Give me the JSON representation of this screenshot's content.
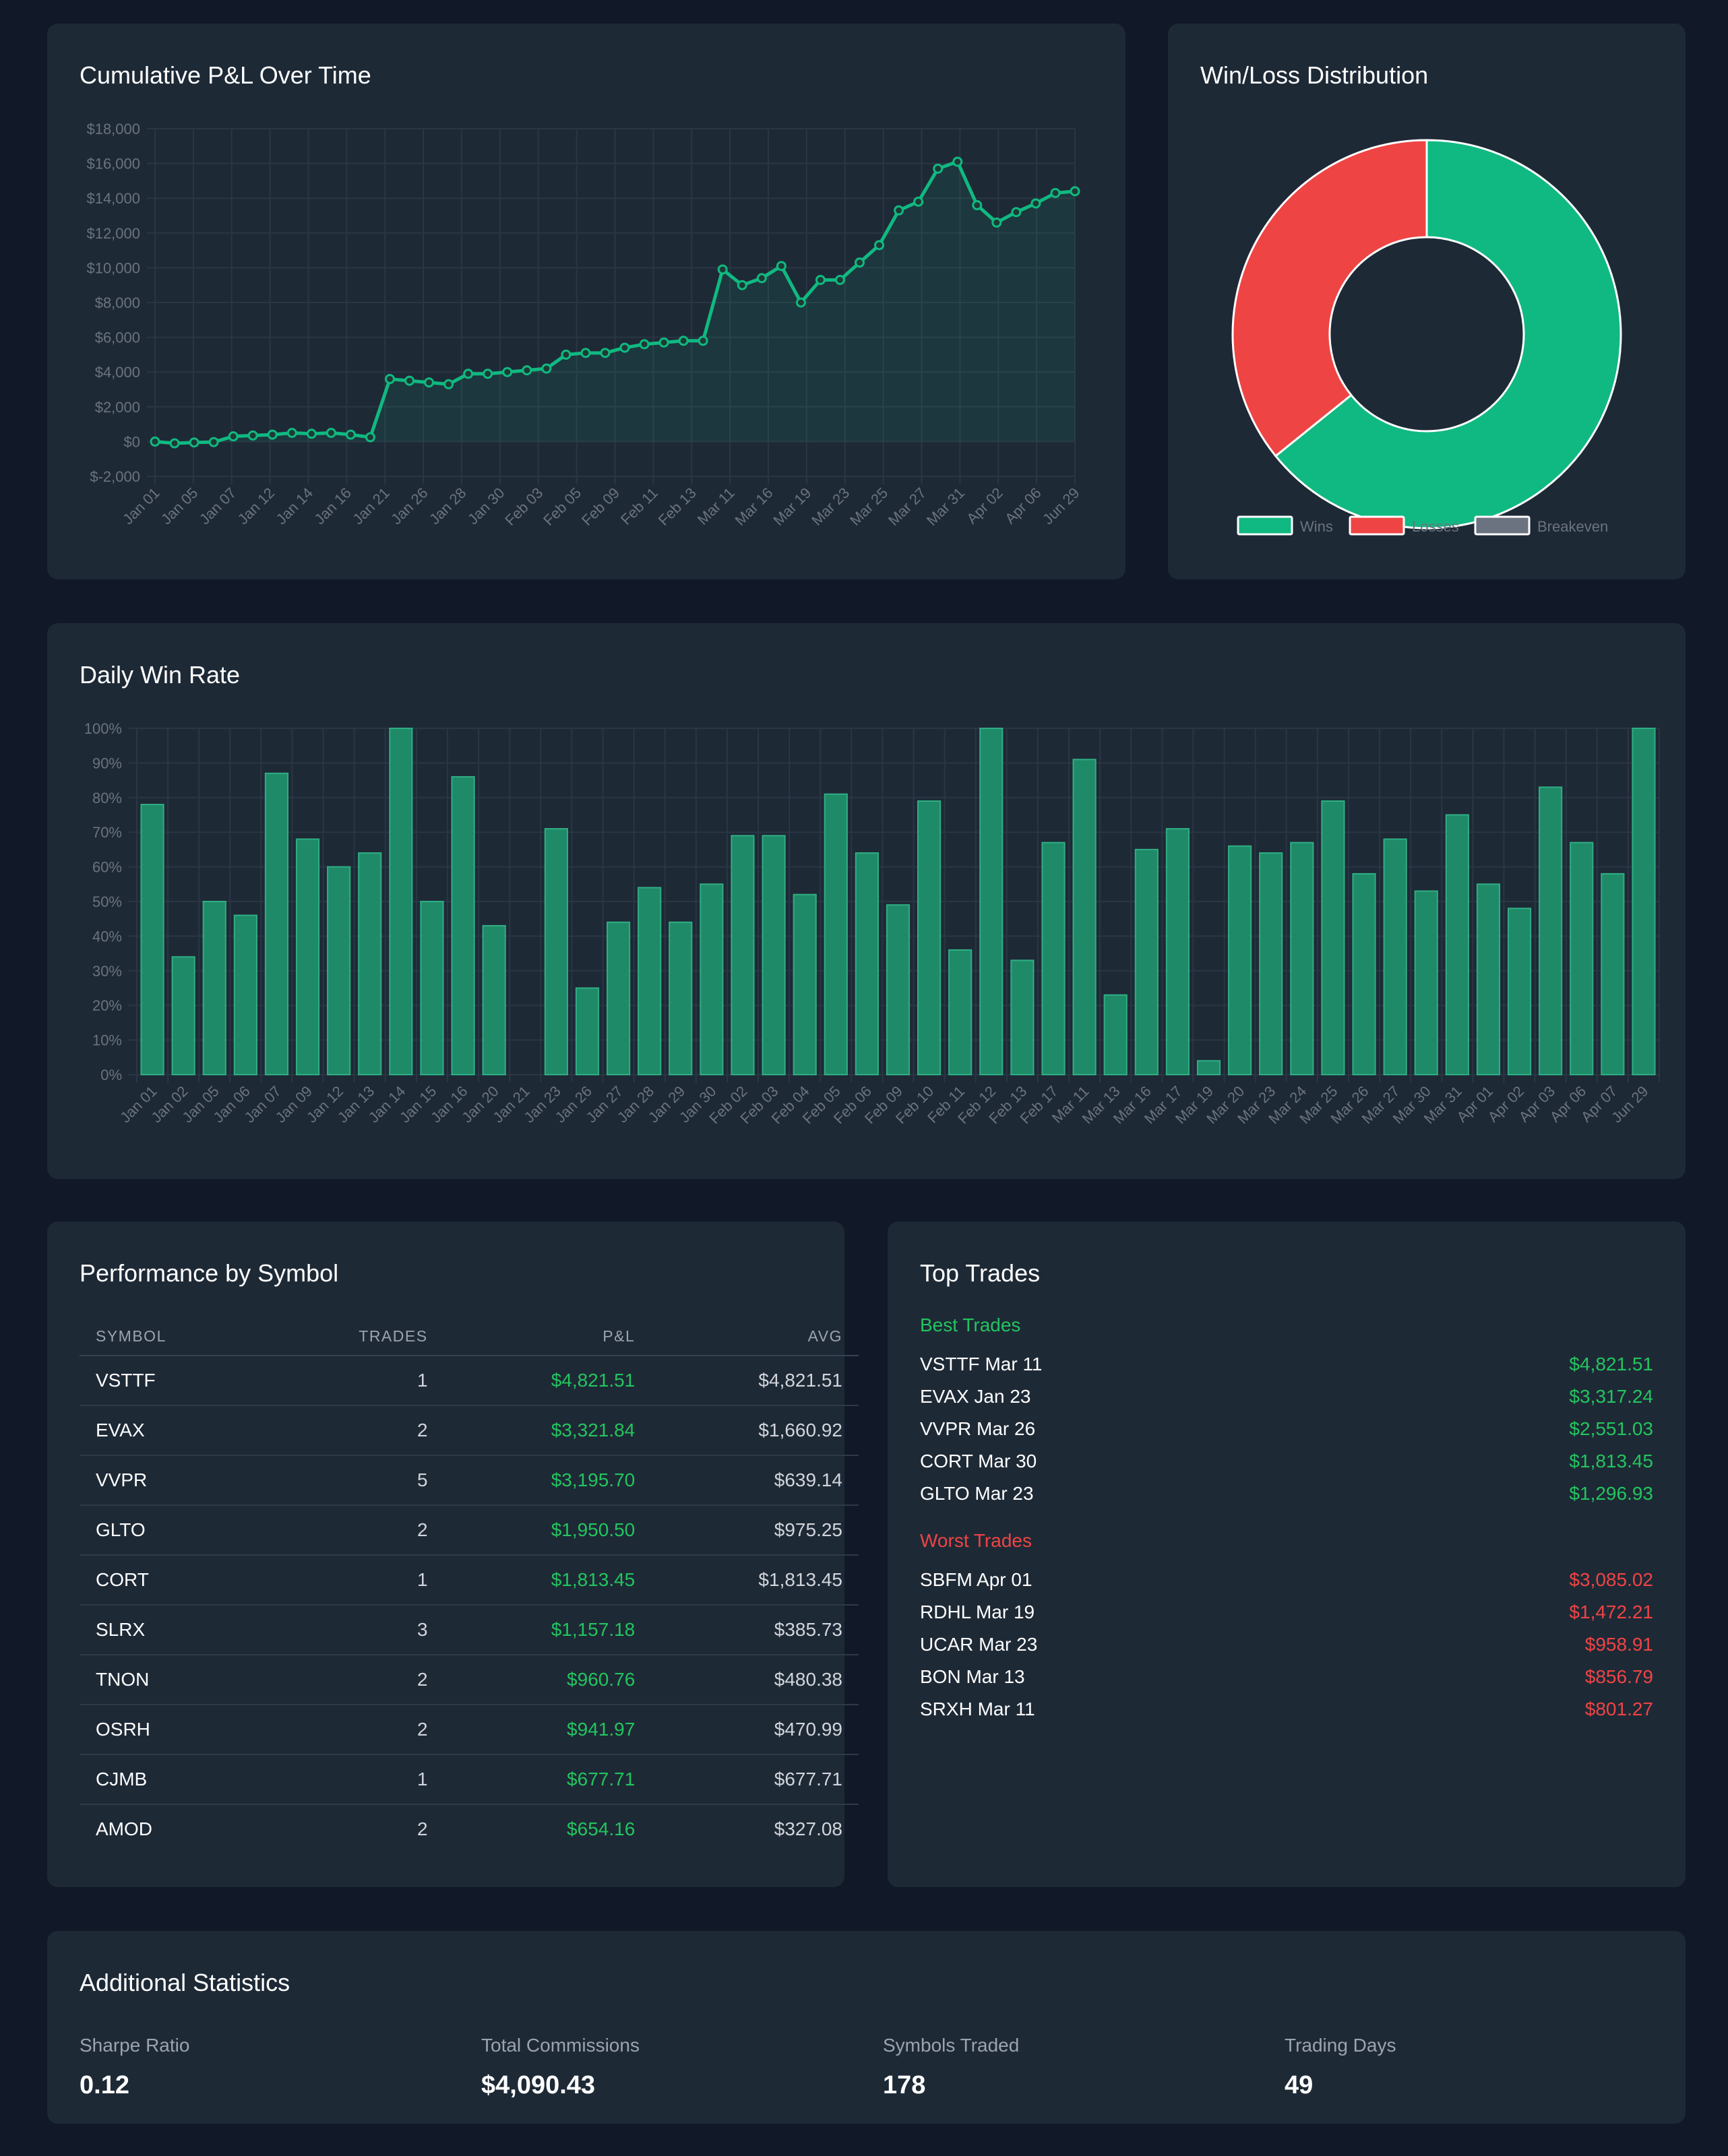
{
  "pnl_chart": {
    "title": "Cumulative P&L Over Time",
    "chart_data": {
      "type": "line",
      "title": "Cumulative P&L Over Time",
      "ylim": [
        -2000,
        18000
      ],
      "y_ticks": [
        "$18,000",
        "$16,000",
        "$14,000",
        "$12,000",
        "$10,000",
        "$8,000",
        "$6,000",
        "$4,000",
        "$2,000",
        "$0",
        "$-2,000"
      ],
      "x_tick_labels": [
        "Jan 01",
        "Jan 05",
        "Jan 07",
        "Jan 12",
        "Jan 14",
        "Jan 16",
        "Jan 21",
        "Jan 26",
        "Jan 28",
        "Jan 30",
        "Feb 03",
        "Feb 05",
        "Feb 09",
        "Feb 11",
        "Feb 13",
        "Mar 11",
        "Mar 16",
        "Mar 19",
        "Mar 23",
        "Mar 25",
        "Mar 27",
        "Mar 31",
        "Apr 02",
        "Apr 06",
        "Jun 29"
      ],
      "values": [
        0,
        -100,
        -50,
        -30,
        300,
        350,
        400,
        500,
        450,
        500,
        400,
        250,
        3600,
        3500,
        3400,
        3300,
        3900,
        3900,
        4000,
        4100,
        4200,
        5000,
        5100,
        5100,
        5400,
        5600,
        5700,
        5800,
        5800,
        9900,
        9000,
        9400,
        10100,
        8000,
        9300,
        9300,
        10300,
        11300,
        13300,
        13800,
        15700,
        16100,
        13600,
        12600,
        13200,
        13700,
        14300,
        14400
      ]
    }
  },
  "winloss_chart": {
    "title": "Win/Loss Distribution",
    "chart_data": {
      "type": "pie",
      "title": "Win/Loss Distribution",
      "labels": [
        "Wins",
        "Losses",
        "Breakeven"
      ],
      "values": [
        64.2,
        35.8,
        0
      ],
      "colors": [
        "#10b981",
        "#ef4444",
        "#6b7280"
      ]
    },
    "legend": [
      "Wins",
      "Losses",
      "Breakeven"
    ]
  },
  "winrate_chart": {
    "title": "Daily Win Rate",
    "chart_data": {
      "type": "bar",
      "title": "Daily Win Rate",
      "ylim": [
        0,
        100
      ],
      "y_ticks": [
        "100%",
        "90%",
        "80%",
        "70%",
        "60%",
        "50%",
        "40%",
        "30%",
        "20%",
        "10%",
        "0%"
      ],
      "categories": [
        "Jan 01",
        "Jan 02",
        "Jan 05",
        "Jan 06",
        "Jan 07",
        "Jan 09",
        "Jan 12",
        "Jan 13",
        "Jan 14",
        "Jan 15",
        "Jan 16",
        "Jan 20",
        "Jan 21",
        "Jan 23",
        "Jan 26",
        "Jan 27",
        "Jan 28",
        "Jan 29",
        "Jan 30",
        "Feb 02",
        "Feb 03",
        "Feb 04",
        "Feb 05",
        "Feb 06",
        "Feb 09",
        "Feb 10",
        "Feb 11",
        "Feb 12",
        "Feb 13",
        "Feb 17",
        "Mar 11",
        "Mar 13",
        "Mar 16",
        "Mar 17",
        "Mar 19",
        "Mar 20",
        "Mar 23",
        "Mar 24",
        "Mar 25",
        "Mar 26",
        "Mar 27",
        "Mar 30",
        "Mar 31",
        "Apr 01",
        "Apr 02",
        "Apr 03",
        "Apr 06",
        "Apr 07",
        "Jun 29"
      ],
      "values": [
        78,
        34,
        50,
        46,
        87,
        68,
        60,
        64,
        100,
        50,
        86,
        43,
        0,
        71,
        25,
        44,
        54,
        44,
        55,
        69,
        69,
        52,
        81,
        64,
        49,
        79,
        36,
        100,
        33,
        67,
        91,
        23,
        65,
        71,
        4,
        66,
        64,
        67,
        79,
        58,
        68,
        53,
        75,
        55,
        48,
        83,
        67,
        58,
        100
      ]
    }
  },
  "performance": {
    "title": "Performance by Symbol",
    "headers": [
      "Symbol",
      "Trades",
      "P&L",
      "Avg"
    ],
    "rows": [
      {
        "symbol": "VSTTF",
        "trades": "1",
        "pnl": "$4,821.51",
        "avg": "$4,821.51"
      },
      {
        "symbol": "EVAX",
        "trades": "2",
        "pnl": "$3,321.84",
        "avg": "$1,660.92"
      },
      {
        "symbol": "VVPR",
        "trades": "5",
        "pnl": "$3,195.70",
        "avg": "$639.14"
      },
      {
        "symbol": "GLTO",
        "trades": "2",
        "pnl": "$1,950.50",
        "avg": "$975.25"
      },
      {
        "symbol": "CORT",
        "trades": "1",
        "pnl": "$1,813.45",
        "avg": "$1,813.45"
      },
      {
        "symbol": "SLRX",
        "trades": "3",
        "pnl": "$1,157.18",
        "avg": "$385.73"
      },
      {
        "symbol": "TNON",
        "trades": "2",
        "pnl": "$960.76",
        "avg": "$480.38"
      },
      {
        "symbol": "OSRH",
        "trades": "2",
        "pnl": "$941.97",
        "avg": "$470.99"
      },
      {
        "symbol": "CJMB",
        "trades": "1",
        "pnl": "$677.71",
        "avg": "$677.71"
      },
      {
        "symbol": "AMOD",
        "trades": "2",
        "pnl": "$654.16",
        "avg": "$327.08"
      }
    ]
  },
  "top_trades": {
    "title": "Top Trades",
    "best_label": "Best Trades",
    "worst_label": "Worst Trades",
    "best": [
      {
        "name": "VSTTF Mar 11",
        "value": "$4,821.51"
      },
      {
        "name": "EVAX Jan 23",
        "value": "$3,317.24"
      },
      {
        "name": "VVPR Mar 26",
        "value": "$2,551.03"
      },
      {
        "name": "CORT Mar 30",
        "value": "$1,813.45"
      },
      {
        "name": "GLTO Mar 23",
        "value": "$1,296.93"
      }
    ],
    "worst": [
      {
        "name": "SBFM Apr 01",
        "value": "$3,085.02"
      },
      {
        "name": "RDHL Mar 19",
        "value": "$1,472.21"
      },
      {
        "name": "UCAR Mar 23",
        "value": "$958.91"
      },
      {
        "name": "BON Mar 13",
        "value": "$856.79"
      },
      {
        "name": "SRXH Mar 11",
        "value": "$801.27"
      }
    ]
  },
  "stats": {
    "title": "Additional Statistics",
    "items": [
      {
        "label": "Sharpe Ratio",
        "value": "0.12"
      },
      {
        "label": "Total Commissions",
        "value": "$4,090.43"
      },
      {
        "label": "Symbols Traded",
        "value": "178"
      },
      {
        "label": "Trading Days",
        "value": "49"
      }
    ]
  },
  "colors": {
    "positive": "#22c55e",
    "negative": "#ef4444",
    "line": "#10b981",
    "bar": "#1f8a68"
  }
}
